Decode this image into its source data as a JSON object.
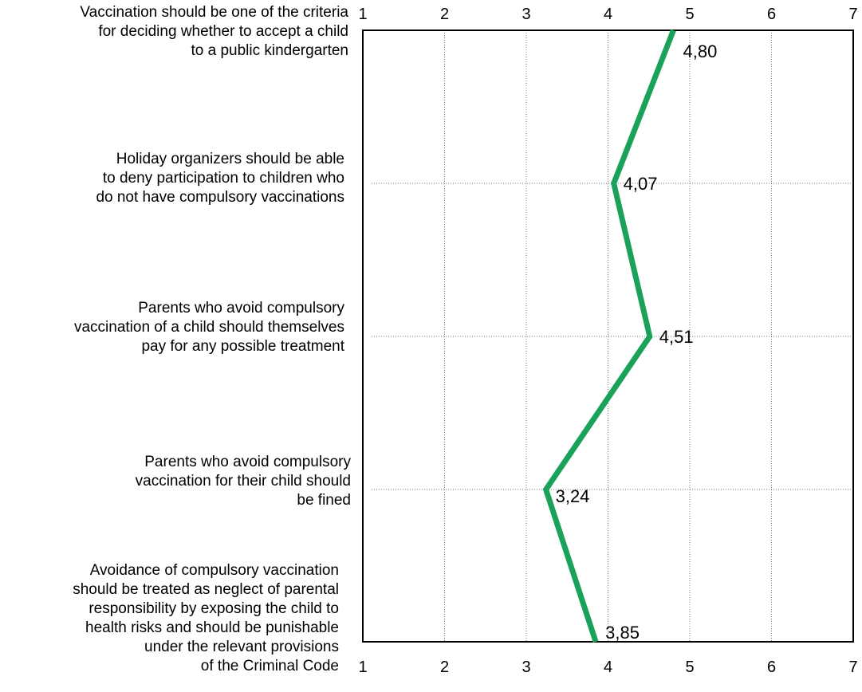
{
  "chart_data": {
    "type": "line",
    "orientation": "horizontal",
    "title": "",
    "xlabel": "",
    "ylabel": "",
    "xlim": [
      1,
      7
    ],
    "x_ticks": [
      1,
      2,
      3,
      4,
      5,
      6,
      7
    ],
    "x_tick_labels": [
      "1",
      "2",
      "3",
      "4",
      "5",
      "6",
      "7"
    ],
    "grid": true,
    "legend": "none",
    "line_color": "#1aa15a",
    "categories": [
      [
        "Vaccination should be one of the criteria",
        "for deciding whether to accept a child",
        "to a public kindergarten"
      ],
      [
        "Holiday organizers should be able",
        "to deny participation to children who",
        "do not have compulsory vaccinations"
      ],
      [
        "Parents who avoid compulsory",
        "vaccination of a child should themselves",
        "pay for any possible treatment"
      ],
      [
        "Parents who avoid compulsory",
        "vaccination for their child should",
        "be fined"
      ],
      [
        "Avoidance of compulsory vaccination",
        "should be treated as neglect of parental",
        "responsibility by exposing the child to",
        "health risks and should be punishable",
        "under the relevant provisions",
        "of the Criminal Code"
      ]
    ],
    "values": [
      4.8,
      4.07,
      4.51,
      3.24,
      3.85
    ],
    "value_labels": [
      "4,80",
      "4,07",
      "4,51",
      "3,24",
      "3,85"
    ]
  }
}
